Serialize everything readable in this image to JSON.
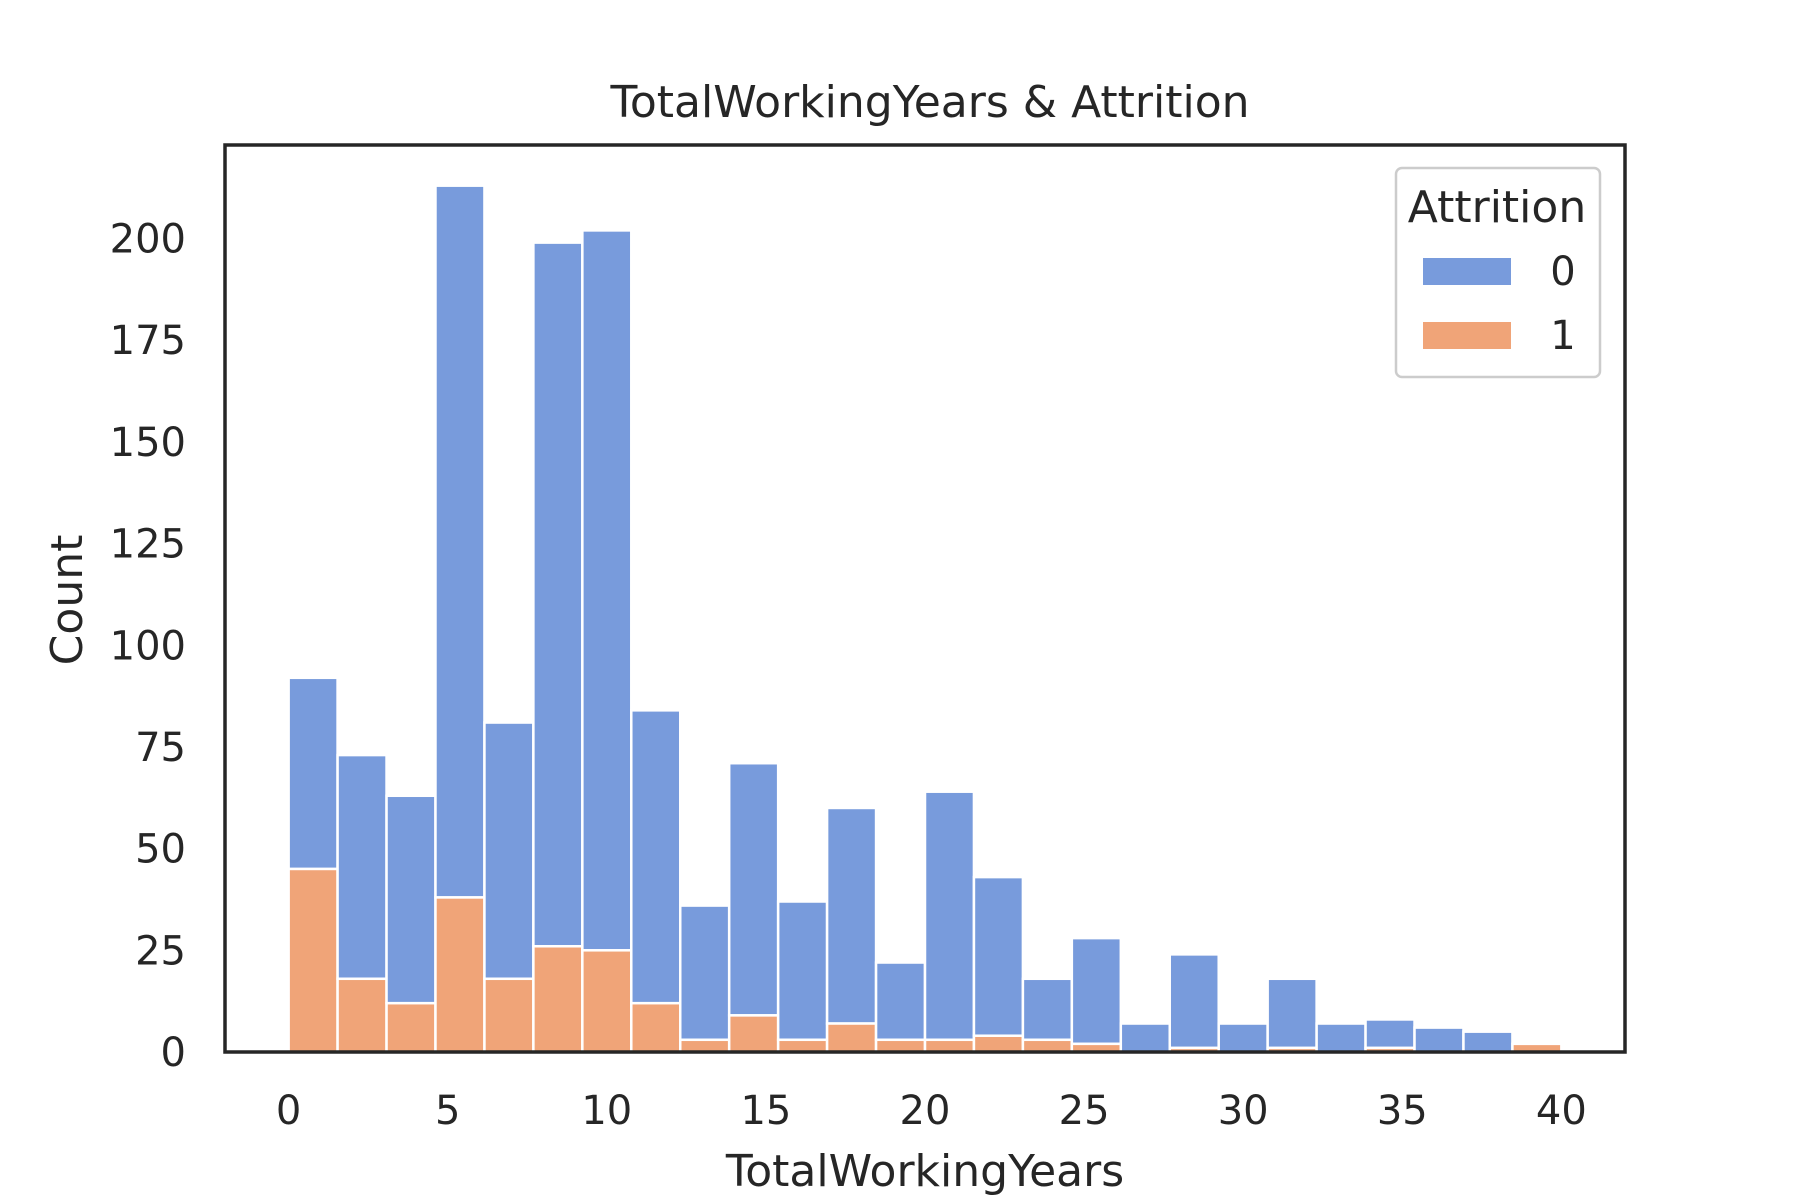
{
  "chart_data": {
    "type": "bar",
    "subtype": "stacked-histogram",
    "title": "TotalWorkingYears & Attrition",
    "xlabel": "TotalWorkingYears",
    "ylabel": "Count",
    "xlim": [
      -2,
      42
    ],
    "ylim": [
      0,
      223
    ],
    "xticks": [
      0,
      5,
      10,
      15,
      20,
      25,
      30,
      35,
      40
    ],
    "yticks": [
      0,
      25,
      50,
      75,
      100,
      125,
      150,
      175,
      200
    ],
    "grid": false,
    "legend": {
      "title": "Attrition",
      "placement": "top-right",
      "entries": [
        "0",
        "1"
      ]
    },
    "bins": [
      [
        0,
        1.538
      ],
      [
        1.538,
        3.077
      ],
      [
        3.077,
        4.615
      ],
      [
        4.615,
        6.154
      ],
      [
        6.154,
        7.692
      ],
      [
        7.692,
        9.231
      ],
      [
        9.231,
        10.769
      ],
      [
        10.769,
        12.308
      ],
      [
        12.308,
        13.846
      ],
      [
        13.846,
        15.385
      ],
      [
        15.385,
        16.923
      ],
      [
        16.923,
        18.462
      ],
      [
        18.462,
        20.0
      ],
      [
        20.0,
        21.538
      ],
      [
        21.538,
        23.077
      ],
      [
        23.077,
        24.615
      ],
      [
        24.615,
        26.154
      ],
      [
        26.154,
        27.692
      ],
      [
        27.692,
        29.231
      ],
      [
        29.231,
        30.769
      ],
      [
        30.769,
        32.308
      ],
      [
        32.308,
        33.846
      ],
      [
        33.846,
        35.385
      ],
      [
        35.385,
        36.923
      ],
      [
        36.923,
        38.462
      ],
      [
        38.462,
        40.0
      ]
    ],
    "series": [
      {
        "name": "1",
        "color": "#f0a478",
        "values": [
          45,
          18,
          12,
          38,
          18,
          26,
          25,
          12,
          3,
          9,
          3,
          7,
          3,
          3,
          4,
          3,
          2,
          0,
          1,
          0,
          1,
          0,
          1,
          0,
          0,
          2
        ]
      },
      {
        "name": "0",
        "color": "#789bdc",
        "values": [
          47,
          55,
          51,
          175,
          63,
          173,
          177,
          72,
          33,
          62,
          34,
          53,
          19,
          61,
          39,
          15,
          26,
          7,
          23,
          7,
          17,
          7,
          7,
          6,
          5,
          0
        ]
      }
    ]
  }
}
